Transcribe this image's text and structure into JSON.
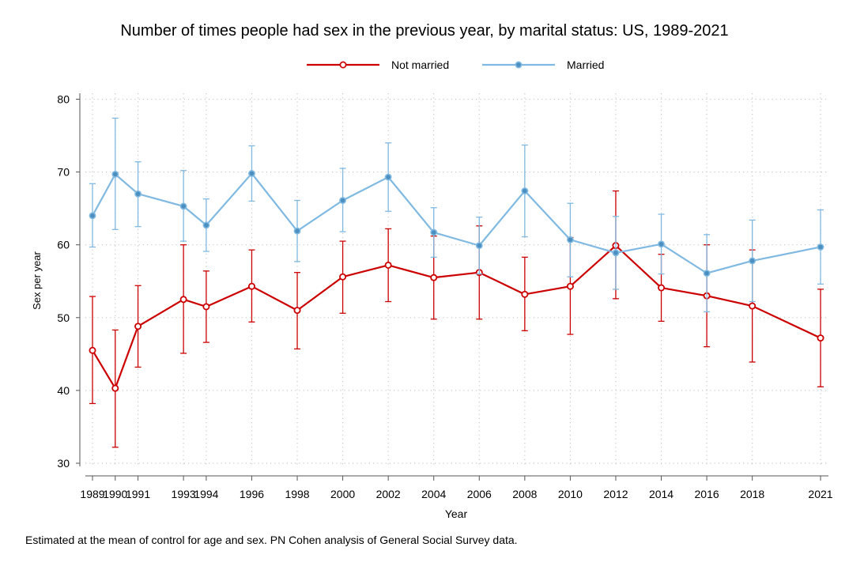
{
  "chart_data": {
    "type": "line",
    "title": "Number of times people had sex in the previous year, by marital status: US, 1989-2021",
    "xlabel": "Year",
    "ylabel": "Sex per year",
    "note": "Estimated at the mean of control for age and sex. PN Cohen analysis of General Social Survey data.",
    "ylim": [
      30,
      80
    ],
    "yticks": [
      30,
      40,
      50,
      60,
      70,
      80
    ],
    "x": [
      1989,
      1990,
      1991,
      1993,
      1994,
      1996,
      1998,
      2000,
      2002,
      2004,
      2006,
      2008,
      2010,
      2012,
      2014,
      2016,
      2018,
      2021
    ],
    "xtick_labels": [
      "1989",
      "1990",
      "1991",
      "1993",
      "1994",
      "1996",
      "1998",
      "2000",
      "2002",
      "2004",
      "2006",
      "2008",
      "2010",
      "2012",
      "2014",
      "2016",
      "2018",
      "2021"
    ],
    "grid": true,
    "legend_position": "top-center",
    "series": [
      {
        "name": "Not married",
        "color": "#cc0000",
        "marker": "hollow-circle",
        "values": [
          45.5,
          40.3,
          48.8,
          52.5,
          51.5,
          54.3,
          51.0,
          55.6,
          57.2,
          55.5,
          56.2,
          53.2,
          54.3,
          59.9,
          54.1,
          53.0,
          51.6,
          47.2
        ],
        "lower": [
          38.2,
          32.2,
          43.2,
          45.1,
          46.6,
          49.4,
          45.7,
          50.6,
          52.2,
          49.8,
          49.8,
          48.2,
          47.7,
          52.6,
          49.5,
          46.0,
          43.9,
          40.5
        ],
        "upper": [
          52.9,
          48.3,
          54.4,
          60.0,
          56.4,
          59.3,
          56.2,
          60.5,
          62.2,
          61.2,
          62.6,
          58.3,
          61.0,
          67.4,
          58.7,
          60.0,
          59.3,
          53.9
        ]
      },
      {
        "name": "Married",
        "color": "#7fb9e2",
        "marker": "filled-circle",
        "values": [
          64.0,
          69.7,
          67.0,
          65.3,
          62.7,
          69.8,
          61.9,
          66.1,
          69.3,
          61.7,
          59.9,
          67.4,
          60.7,
          58.9,
          60.1,
          56.1,
          57.8,
          59.7
        ],
        "lower": [
          59.7,
          62.1,
          62.5,
          60.5,
          59.1,
          66.0,
          57.7,
          61.8,
          64.6,
          58.3,
          56.0,
          61.1,
          55.6,
          53.9,
          56.0,
          50.8,
          52.2,
          54.6
        ],
        "upper": [
          68.4,
          77.4,
          71.4,
          70.2,
          66.3,
          73.6,
          66.1,
          70.5,
          74.0,
          65.1,
          63.8,
          73.7,
          65.7,
          63.9,
          64.2,
          61.4,
          63.4,
          64.8
        ]
      }
    ]
  }
}
